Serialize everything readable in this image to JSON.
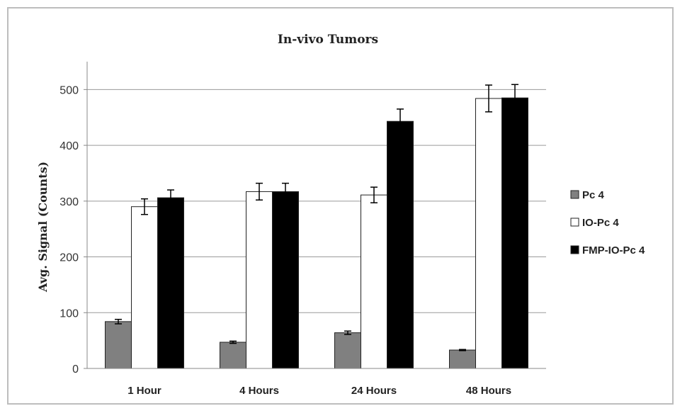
{
  "chart_data": {
    "type": "bar",
    "title": "In-vivo Tumors",
    "xlabel": "",
    "ylabel": "Avg. Signal (Counts)",
    "categories": [
      "1 Hour",
      "4 Hours",
      "24 Hours",
      "48 Hours"
    ],
    "series": [
      {
        "name": "Pc 4",
        "color": "#808080",
        "values": [
          84,
          47,
          64,
          33
        ],
        "errors": [
          4,
          2,
          3,
          1
        ]
      },
      {
        "name": "IO-Pc 4",
        "color": "#ffffff",
        "values": [
          290,
          317,
          311,
          484
        ],
        "errors": [
          14,
          15,
          14,
          24
        ]
      },
      {
        "name": "FMP-IO-Pc 4",
        "color": "#000000",
        "values": [
          306,
          317,
          443,
          485
        ],
        "errors": [
          14,
          15,
          22,
          24
        ]
      }
    ],
    "ylim": [
      0,
      550
    ],
    "yticks": [
      0,
      100,
      200,
      300,
      400,
      500
    ],
    "grid": true,
    "legend": "right"
  }
}
